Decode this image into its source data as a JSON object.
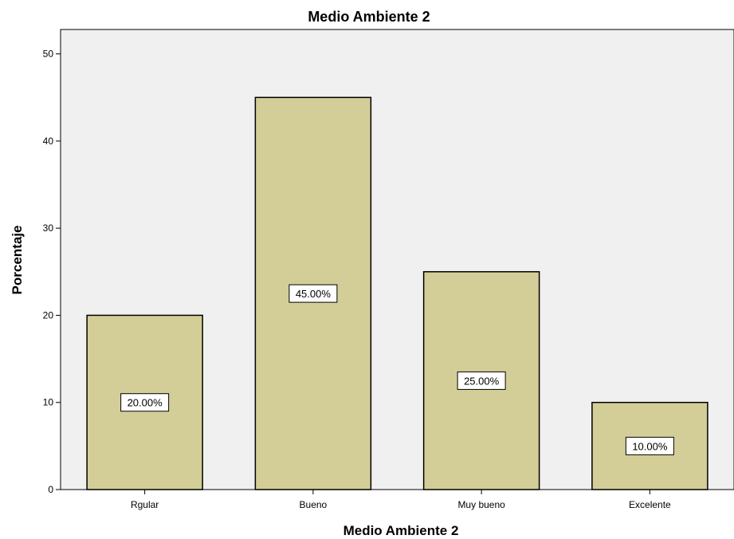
{
  "chart_data": {
    "type": "bar",
    "title": "Medio Ambiente 2",
    "xlabel": "Medio Ambiente 2",
    "ylabel": "Porcentaje",
    "categories": [
      "Rgular",
      "Bueno",
      "Muy bueno",
      "Excelente"
    ],
    "values": [
      20,
      45,
      25,
      10
    ],
    "data_labels": [
      "20.00%",
      "45.00%",
      "25.00%",
      "10.00%"
    ],
    "ylim": [
      0,
      52.8
    ],
    "yticks": [
      0,
      10,
      20,
      30,
      40,
      50
    ],
    "grid": false,
    "legend": "none",
    "colors": {
      "plot_background": "#f0f0f0",
      "bar_fill": "#d3ce97",
      "bar_stroke": "#000000",
      "label_box": "#ffffff"
    }
  }
}
